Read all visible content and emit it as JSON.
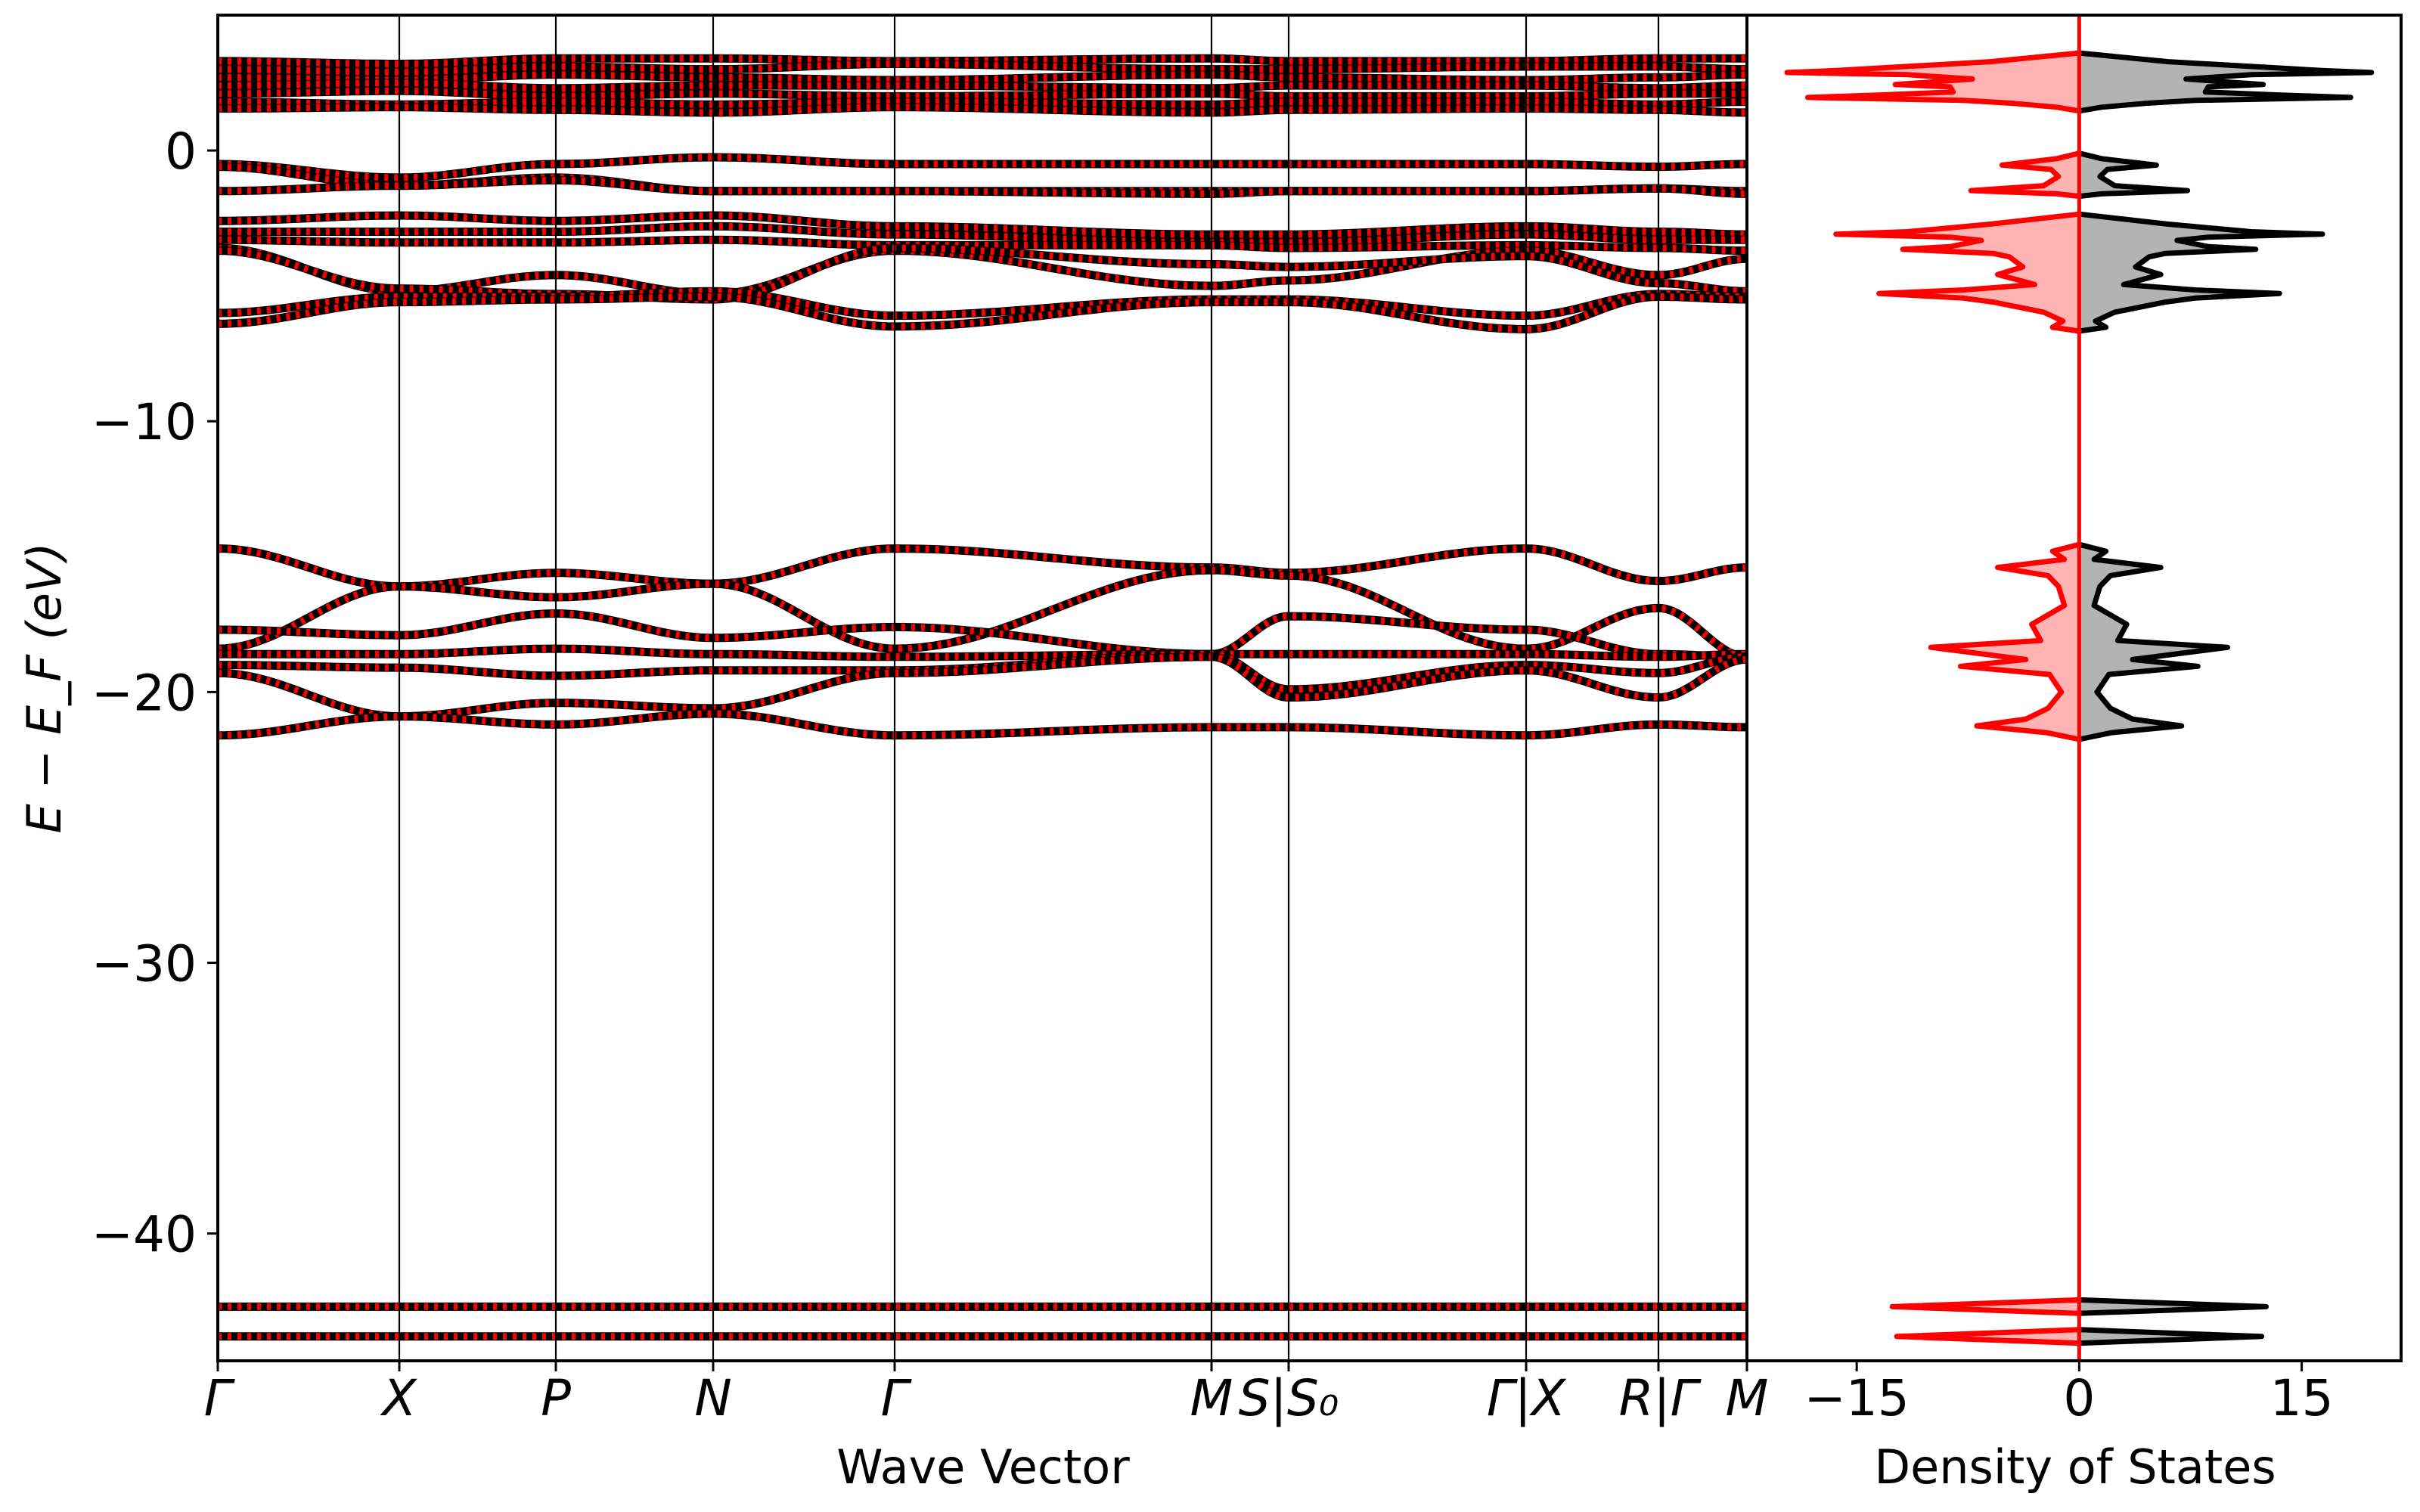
{
  "chart_data": [
    {
      "type": "line",
      "panel": "band-structure",
      "xlabel": "Wave Vector",
      "ylabel": "E − E_F (eV)",
      "ylim": [
        -44.7,
        5.0
      ],
      "yticks": [
        0,
        -10,
        -20,
        -30,
        -40
      ],
      "ytick_labels": [
        "0",
        "−10",
        "−20",
        "−30",
        "−40"
      ],
      "grid": false,
      "kpoints": [
        {
          "label": "Γ",
          "k": 0
        },
        {
          "label": "X",
          "k": 2.4
        },
        {
          "label": "P",
          "k": 4.47
        },
        {
          "label": "N",
          "k": 6.55
        },
        {
          "label": "Γ",
          "k": 8.95
        },
        {
          "label": "M",
          "k": 13.14
        },
        {
          "label": "S|S₀",
          "k": 14.16
        },
        {
          "label": "Γ|X",
          "k": 17.3
        },
        {
          "label": "R|Γ",
          "k": 19.05
        },
        {
          "label": "M",
          "k": 20.22
        }
      ],
      "series_styles": {
        "spin_up": {
          "color": "#000000",
          "style": "solid"
        },
        "spin_down": {
          "color": "#ff0000",
          "style": "dotted"
        }
      },
      "bands_at_kpoints": [
        [
          3.3,
          3.2,
          3.4,
          3.4,
          3.3,
          3.4,
          3.3,
          3.3,
          3.4,
          3.4
        ],
        [
          3.0,
          2.9,
          3.1,
          3.0,
          3.2,
          3.0,
          3.0,
          3.1,
          3.1,
          3.0
        ],
        [
          2.7,
          2.6,
          2.8,
          2.7,
          2.6,
          2.8,
          2.7,
          2.6,
          2.7,
          2.8
        ],
        [
          2.4,
          2.5,
          2.3,
          2.4,
          2.4,
          2.3,
          2.4,
          2.4,
          2.3,
          2.4
        ],
        [
          2.1,
          2.2,
          2.0,
          2.1,
          2.0,
          2.1,
          2.0,
          2.0,
          2.1,
          2.1
        ],
        [
          1.8,
          1.7,
          1.8,
          1.7,
          1.8,
          1.7,
          1.8,
          1.8,
          1.7,
          1.8
        ],
        [
          1.55,
          1.6,
          1.5,
          1.4,
          1.6,
          1.4,
          1.5,
          1.55,
          1.5,
          1.4
        ],
        [
          -0.5,
          -1.0,
          -0.5,
          -0.25,
          -0.5,
          -0.5,
          -0.5,
          -0.5,
          -0.6,
          -0.5
        ],
        [
          -0.6,
          -1.3,
          -1.0,
          -1.5,
          -1.5,
          -1.5,
          -1.5,
          -1.5,
          -1.4,
          -1.5
        ],
        [
          -1.5,
          -1.3,
          -1.1,
          -1.5,
          -1.5,
          -1.6,
          -1.5,
          -1.5,
          -1.4,
          -1.6
        ],
        [
          -2.6,
          -2.4,
          -2.6,
          -2.4,
          -2.8,
          -3.1,
          -3.1,
          -2.8,
          -3.0,
          -3.1
        ],
        [
          -3.0,
          -3.0,
          -3.0,
          -2.8,
          -3.1,
          -3.4,
          -3.4,
          -3.1,
          -3.3,
          -3.3
        ],
        [
          -3.3,
          -3.4,
          -3.4,
          -3.3,
          -3.5,
          -3.5,
          -3.6,
          -3.5,
          -3.6,
          -3.7
        ],
        [
          -3.6,
          -5.2,
          -4.6,
          -5.3,
          -3.7,
          -5.0,
          -4.8,
          -3.7,
          -4.6,
          -4.0
        ],
        [
          -3.7,
          -5.1,
          -5.3,
          -5.5,
          -3.6,
          -4.2,
          -4.3,
          -3.9,
          -4.9,
          -5.2
        ],
        [
          -6.0,
          -5.4,
          -5.4,
          -5.2,
          -6.1,
          -5.5,
          -5.5,
          -6.1,
          -5.3,
          -5.4
        ],
        [
          -6.4,
          -5.6,
          -5.5,
          -5.4,
          -6.5,
          -5.6,
          -5.6,
          -6.6,
          -5.4,
          -5.5
        ],
        [
          -14.7,
          -16.1,
          -15.6,
          -16.0,
          -14.7,
          -15.4,
          -15.6,
          -14.7,
          -15.9,
          -15.4
        ],
        [
          -18.4,
          -16.1,
          -16.5,
          -16.0,
          -18.4,
          -15.5,
          -15.7,
          -18.4,
          -16.9,
          -18.7
        ],
        [
          -17.7,
          -17.9,
          -17.1,
          -18.0,
          -17.6,
          -18.6,
          -17.2,
          -17.7,
          -18.6,
          -18.7
        ],
        [
          -18.6,
          -18.6,
          -18.4,
          -18.6,
          -18.7,
          -18.6,
          -18.6,
          -18.6,
          -18.7,
          -18.6
        ],
        [
          -19.0,
          -19.1,
          -19.4,
          -19.2,
          -19.2,
          -18.6,
          -19.9,
          -19.0,
          -19.3,
          -18.7
        ],
        [
          -19.3,
          -20.9,
          -20.4,
          -20.6,
          -19.3,
          -18.7,
          -20.2,
          -19.2,
          -20.2,
          -18.8
        ],
        [
          -21.6,
          -20.9,
          -21.2,
          -20.8,
          -21.6,
          -21.3,
          -21.3,
          -21.6,
          -21.2,
          -21.3
        ],
        [
          -42.7,
          -42.7,
          -42.7,
          -42.7,
          -42.7,
          -42.7,
          -42.7,
          -42.7,
          -42.7,
          -42.7
        ],
        [
          -43.8,
          -43.8,
          -43.8,
          -43.8,
          -43.8,
          -43.8,
          -43.8,
          -43.8,
          -43.8,
          -43.8
        ]
      ]
    },
    {
      "type": "area",
      "panel": "density-of-states",
      "xlabel": "Density of States",
      "xlim": [
        -22.4,
        21.7
      ],
      "xticks": [
        -15,
        0,
        15
      ],
      "xtick_labels": [
        "−15",
        "0",
        "15"
      ],
      "ylim": [
        -44.7,
        5.0
      ],
      "zero_line_color": "#ff0000",
      "spin_up": {
        "line_color": "#000000",
        "fill_color": "#b3b3b3",
        "side": "positive"
      },
      "spin_down": {
        "line_color": "#ff0000",
        "fill_color": "#ffb3b3",
        "side": "negative"
      },
      "dos_blocks": [
        [
          [
            3.6,
            0
          ],
          [
            3.28,
            6.0
          ],
          [
            2.95,
            16.5
          ],
          [
            2.88,
            19.7
          ],
          [
            2.8,
            11.6
          ],
          [
            2.64,
            7.2
          ],
          [
            2.5,
            10.7
          ],
          [
            2.44,
            12.4
          ],
          [
            2.35,
            8.7
          ],
          [
            2.16,
            8.5
          ],
          [
            2.05,
            13.6
          ],
          [
            1.96,
            18.3
          ],
          [
            1.85,
            7.8
          ],
          [
            1.74,
            4.4
          ],
          [
            1.6,
            1.5
          ],
          [
            1.46,
            0
          ]
        ],
        [
          [
            -0.1,
            0
          ],
          [
            -0.3,
            1.5
          ],
          [
            -0.54,
            5.2
          ],
          [
            -0.7,
            1.9
          ],
          [
            -0.96,
            1.4
          ],
          [
            -1.3,
            2.4
          ],
          [
            -1.48,
            7.3
          ],
          [
            -1.6,
            1.5
          ],
          [
            -1.69,
            0
          ]
        ],
        [
          [
            -2.35,
            0
          ],
          [
            -2.72,
            6.0
          ],
          [
            -3.0,
            11.6
          ],
          [
            -3.09,
            16.4
          ],
          [
            -3.2,
            8.7
          ],
          [
            -3.32,
            6.6
          ],
          [
            -3.55,
            8.7
          ],
          [
            -3.65,
            11.9
          ],
          [
            -3.8,
            5.8
          ],
          [
            -3.93,
            4.7
          ],
          [
            -4.3,
            3.8
          ],
          [
            -4.58,
            5.5
          ],
          [
            -4.95,
            3.0
          ],
          [
            -5.15,
            7.8
          ],
          [
            -5.28,
            13.5
          ],
          [
            -5.45,
            7.8
          ],
          [
            -5.6,
            5.8
          ],
          [
            -5.97,
            2.4
          ],
          [
            -6.3,
            1.1
          ],
          [
            -6.53,
            1.8
          ],
          [
            -6.67,
            0
          ]
        ],
        [
          [
            -14.55,
            0
          ],
          [
            -14.8,
            1.8
          ],
          [
            -15.1,
            1.0
          ],
          [
            -15.4,
            5.5
          ],
          [
            -15.7,
            2.1
          ],
          [
            -16.1,
            1.4
          ],
          [
            -16.8,
            1.0
          ],
          [
            -17.5,
            3.2
          ],
          [
            -18.1,
            2.6
          ],
          [
            -18.35,
            10.0
          ],
          [
            -18.8,
            3.6
          ],
          [
            -19.05,
            8.0
          ],
          [
            -19.35,
            2.0
          ],
          [
            -20.0,
            1.2
          ],
          [
            -20.6,
            2.1
          ],
          [
            -21.0,
            3.6
          ],
          [
            -21.25,
            6.9
          ],
          [
            -21.5,
            2.2
          ],
          [
            -21.75,
            0
          ]
        ],
        [
          [
            -42.45,
            0
          ],
          [
            -42.7,
            12.6
          ],
          [
            -42.95,
            0
          ]
        ],
        [
          [
            -43.55,
            0
          ],
          [
            -43.8,
            12.3
          ],
          [
            -44.05,
            0
          ]
        ]
      ]
    }
  ]
}
